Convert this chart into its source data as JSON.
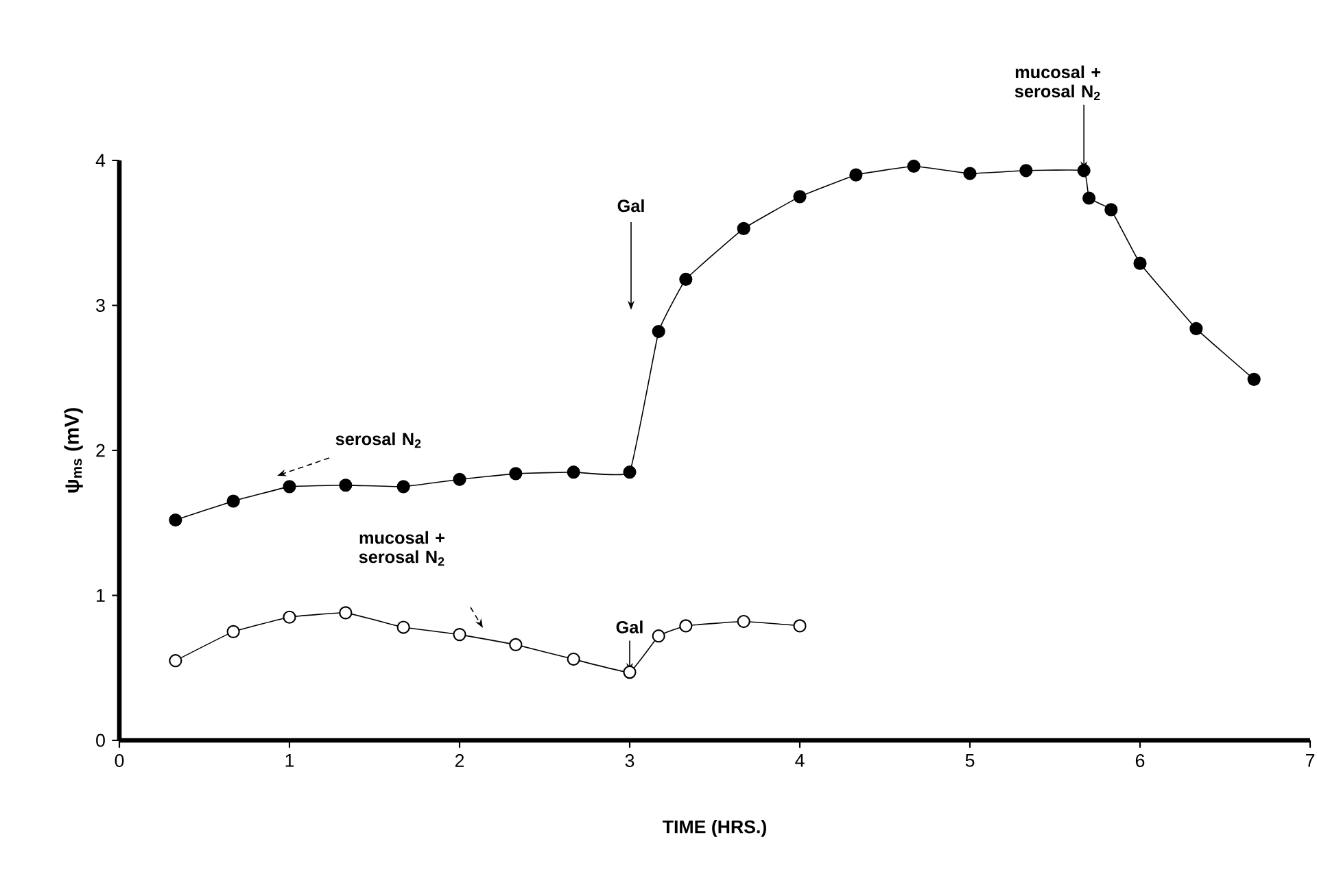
{
  "chart_data": {
    "type": "line",
    "xlabel": "TIME (HRS.)",
    "ylabel": "ψ$_{ms}$ (mV)",
    "xlim": [
      0,
      7
    ],
    "ylim": [
      0,
      4
    ],
    "xticks": [
      0,
      1,
      2,
      3,
      4,
      5,
      6,
      7
    ],
    "yticks": [
      0,
      1,
      2,
      3,
      4
    ],
    "marker": "circle",
    "grid": false,
    "series": [
      {
        "color": "#000000",
        "x": [
          0.33,
          0.67,
          1.0,
          1.33,
          1.67,
          2.0,
          2.33,
          2.67,
          3.0,
          3.17,
          3.33,
          3.67,
          4.0,
          4.33,
          4.67,
          5.0,
          5.33,
          5.67,
          5.7,
          5.83,
          6.0,
          6.33,
          6.67
        ],
        "values": [
          1.52,
          1.65,
          1.75,
          1.76,
          1.75,
          1.8,
          1.84,
          1.85,
          1.85,
          2.82,
          3.18,
          3.53,
          3.75,
          3.9,
          3.96,
          3.91,
          3.93,
          3.93,
          3.74,
          3.66,
          3.29,
          2.84,
          2.49
        ]
      },
      {
        "color": "#000000",
        "x": [
          0.33,
          0.67,
          1.0,
          1.33,
          1.67,
          2.0,
          2.33,
          2.67,
          3.0,
          3.17,
          3.33,
          3.67,
          4.0
        ],
        "values": [
          0.55,
          0.75,
          0.85,
          0.88,
          0.78,
          0.73,
          0.66,
          0.56,
          0.47,
          0.72,
          0.79,
          0.82,
          0.79
        ]
      }
    ],
    "annotations": [
      "serosal N$_{2}$",
      "Gal",
      {
        "text": "mucosal + serosal N$_{2}$",
        "x": 5.67,
        "y": 3.93
      },
      "mucosal + serosal N$_{2}$",
      {
        "text": "Gal",
        "x": 3,
        "y": 0.47
      }
    ]
  }
}
